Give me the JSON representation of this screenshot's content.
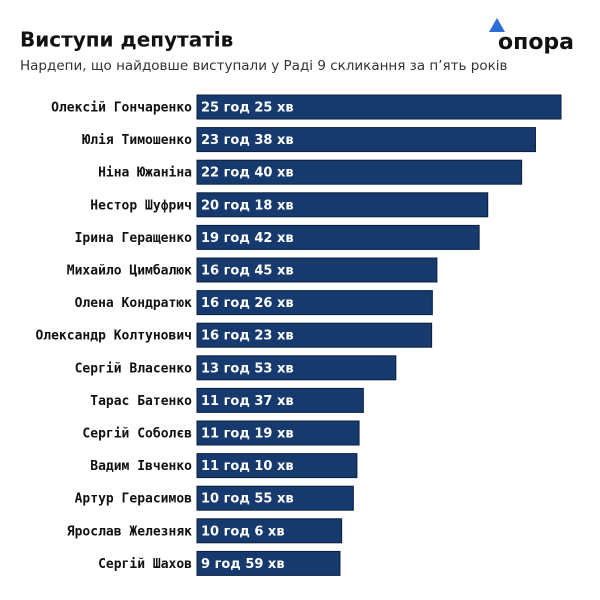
{
  "chart_data": {
    "type": "bar",
    "orientation": "horizontal",
    "title": "Виступи депутатів",
    "subtitle": "Нардепи, що найдовше виступали у Раді 9 скликання за п’ять років",
    "logo": "опора",
    "color": "#163a6e",
    "categories": [
      "Олексій Гончаренко",
      "Юлія Тимошенко",
      "Ніна Южаніна",
      "Нестор Шуфрич",
      "Ірина Геращенко",
      "Михайло Цимбалюк",
      "Олена Кондратюк",
      "Олександр Колтунович",
      "Сергій Власенко",
      "Тарас Батенко",
      "Сергій Соболєв",
      "Вадим Івченко",
      "Артур Герасимов",
      "Ярослав Железняк",
      "Сергій Шахов"
    ],
    "values": [
      1525,
      1418,
      1360,
      1218,
      1182,
      1005,
      986,
      983,
      833,
      697,
      679,
      670,
      655,
      606,
      599
    ],
    "value_labels": [
      "25 год 25 хв",
      "23 год 38 хв",
      "22 год 40 хв",
      "20 год 18 хв",
      "19 год 42 хв",
      "16 год 45 хв",
      "16 год 26 хв",
      "16 год 23 хв",
      "13 год 53 хв",
      "11 год 37 хв",
      "11 год 19 хв",
      "11 год 10 хв",
      "10 год 55 хв",
      "10 год 6 хв",
      "9 год 59 хв"
    ]
  }
}
